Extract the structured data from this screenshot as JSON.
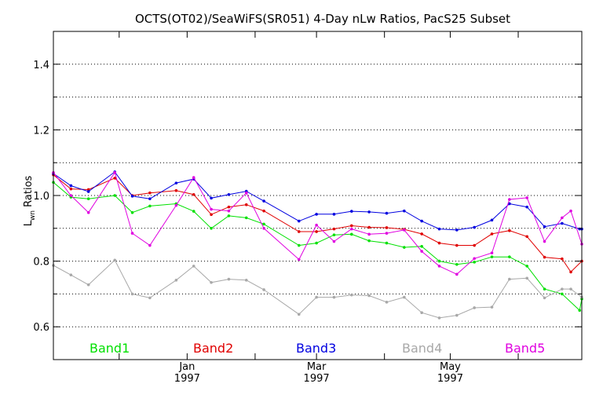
{
  "chart_data": {
    "type": "line",
    "title": "OCTS(OT02)/SeaWiFS(SR051) 4-Day nLw Ratios, PacS25 Subset",
    "ylabel": {
      "main": "L",
      "sub": "wn",
      "rest": " Ratios"
    },
    "ylim": [
      0.5,
      1.5
    ],
    "yticks": [
      0.6,
      0.8,
      1.0,
      1.2,
      1.4
    ],
    "ytick_labels": [
      "0.6",
      "0.8",
      "1.0",
      "1.2",
      "1.4"
    ],
    "yminor": [
      0.7,
      0.9,
      1.1,
      1.3
    ],
    "xlim": [
      "1996-11-01",
      "1997-06-30"
    ],
    "xticks": [
      {
        "date": "1996-12-01",
        "label": "",
        "year": ""
      },
      {
        "date": "1997-01-01",
        "label": "Jan",
        "year": "1997"
      },
      {
        "date": "1997-02-01",
        "label": "",
        "year": ""
      },
      {
        "date": "1997-03-01",
        "label": "Mar",
        "year": "1997"
      },
      {
        "date": "1997-04-01",
        "label": "",
        "year": ""
      },
      {
        "date": "1997-05-01",
        "label": "May",
        "year": "1997"
      },
      {
        "date": "1997-06-01",
        "label": "",
        "year": ""
      }
    ],
    "grid": "horizontal dotted",
    "legend_position": "bottom",
    "x": [
      "1996-11-01",
      "1996-11-05",
      "1996-11-09",
      "1996-11-13",
      "1996-11-17",
      "1996-11-21",
      "1996-11-29",
      "1996-12-03",
      "1996-12-07",
      "1996-12-11",
      "1996-12-15",
      "1996-12-19",
      "1996-12-23",
      "1996-12-27",
      "1997-01-04",
      "1997-01-08",
      "1997-01-12",
      "1997-01-16",
      "1997-01-20",
      "1997-01-24",
      "1997-01-28",
      "1997-02-05",
      "1997-02-13",
      "1997-02-17",
      "1997-02-21",
      "1997-02-25",
      "1997-03-01",
      "1997-03-05",
      "1997-03-09",
      "1997-03-13",
      "1997-03-17",
      "1997-03-21",
      "1997-03-25",
      "1997-03-29",
      "1997-04-02",
      "1997-04-06",
      "1997-04-10",
      "1997-04-14",
      "1997-04-18",
      "1997-04-22",
      "1997-04-26",
      "1997-04-30",
      "1997-05-04",
      "1997-05-08",
      "1997-05-12",
      "1997-05-16",
      "1997-05-20",
      "1997-05-24",
      "1997-05-28",
      "1997-06-01",
      "1997-06-05",
      "1997-06-09",
      "1997-06-13",
      "1997-06-17",
      "1997-06-21",
      "1997-06-25",
      "1997-06-29"
    ],
    "series": [
      {
        "name": "Band1",
        "color": "#00e000",
        "points": [
          [
            "1996-11-01",
            1.04
          ],
          [
            "1996-11-09",
            0.995
          ],
          [
            "1996-11-17",
            0.99
          ],
          [
            "1996-11-29",
            1.0
          ],
          [
            "1996-12-07",
            0.948
          ],
          [
            "1996-12-15",
            0.968
          ],
          [
            "1996-12-27",
            0.975
          ],
          [
            "1997-01-04",
            0.952
          ],
          [
            "1997-01-12",
            0.9
          ],
          [
            "1997-01-20",
            0.938
          ],
          [
            "1997-01-28",
            0.932
          ],
          [
            "1997-02-05",
            0.913
          ],
          [
            "1997-02-21",
            0.848
          ],
          [
            "1997-03-01",
            0.855
          ],
          [
            "1997-03-09",
            0.88
          ],
          [
            "1997-03-17",
            0.882
          ],
          [
            "1997-03-25",
            0.862
          ],
          [
            "1997-04-02",
            0.855
          ],
          [
            "1997-04-10",
            0.842
          ],
          [
            "1997-04-18",
            0.845
          ],
          [
            "1997-04-26",
            0.8
          ],
          [
            "1997-05-04",
            0.79
          ],
          [
            "1997-05-12",
            0.797
          ],
          [
            "1997-05-20",
            0.813
          ],
          [
            "1997-05-28",
            0.813
          ],
          [
            "1997-06-05",
            0.785
          ],
          [
            "1997-06-13",
            0.715
          ],
          [
            "1997-06-21",
            0.7
          ],
          [
            "1997-06-29",
            0.65
          ],
          [
            "1997-06-30",
            0.685
          ]
        ]
      },
      {
        "name": "Band2",
        "color": "#e00000",
        "points": [
          [
            "1996-11-01",
            1.063
          ],
          [
            "1996-11-09",
            1.02
          ],
          [
            "1996-11-17",
            1.018
          ],
          [
            "1996-11-29",
            1.053
          ],
          [
            "1996-12-07",
            1.0
          ],
          [
            "1996-12-15",
            1.008
          ],
          [
            "1996-12-27",
            1.015
          ],
          [
            "1997-01-04",
            1.003
          ],
          [
            "1997-01-12",
            0.942
          ],
          [
            "1997-01-20",
            0.965
          ],
          [
            "1997-01-28",
            0.972
          ],
          [
            "1997-02-05",
            0.953
          ],
          [
            "1997-02-21",
            0.89
          ],
          [
            "1997-03-01",
            0.89
          ],
          [
            "1997-03-09",
            0.898
          ],
          [
            "1997-03-17",
            0.908
          ],
          [
            "1997-03-25",
            0.903
          ],
          [
            "1997-04-02",
            0.902
          ],
          [
            "1997-04-10",
            0.897
          ],
          [
            "1997-04-18",
            0.883
          ],
          [
            "1997-04-26",
            0.855
          ],
          [
            "1997-05-04",
            0.848
          ],
          [
            "1997-05-12",
            0.848
          ],
          [
            "1997-05-20",
            0.883
          ],
          [
            "1997-05-28",
            0.893
          ],
          [
            "1997-06-05",
            0.875
          ],
          [
            "1997-06-13",
            0.812
          ],
          [
            "1997-06-21",
            0.807
          ],
          [
            "1997-06-25",
            0.767
          ],
          [
            "1997-06-30",
            0.8
          ]
        ]
      },
      {
        "name": "Band3",
        "color": "#0000e0",
        "points": [
          [
            "1996-11-01",
            1.067
          ],
          [
            "1996-11-09",
            1.03
          ],
          [
            "1996-11-17",
            1.012
          ],
          [
            "1996-11-29",
            1.072
          ],
          [
            "1996-12-07",
            0.998
          ],
          [
            "1996-12-15",
            0.99
          ],
          [
            "1996-12-27",
            1.038
          ],
          [
            "1997-01-04",
            1.05
          ],
          [
            "1997-01-12",
            0.992
          ],
          [
            "1997-01-20",
            1.003
          ],
          [
            "1997-01-28",
            1.013
          ],
          [
            "1997-02-05",
            0.983
          ],
          [
            "1997-02-21",
            0.922
          ],
          [
            "1997-03-01",
            0.943
          ],
          [
            "1997-03-09",
            0.943
          ],
          [
            "1997-03-17",
            0.952
          ],
          [
            "1997-03-25",
            0.95
          ],
          [
            "1997-04-02",
            0.946
          ],
          [
            "1997-04-10",
            0.953
          ],
          [
            "1997-04-18",
            0.922
          ],
          [
            "1997-04-26",
            0.898
          ],
          [
            "1997-05-04",
            0.895
          ],
          [
            "1997-05-12",
            0.903
          ],
          [
            "1997-05-20",
            0.925
          ],
          [
            "1997-05-28",
            0.975
          ],
          [
            "1997-06-05",
            0.965
          ],
          [
            "1997-06-13",
            0.905
          ],
          [
            "1997-06-21",
            0.915
          ],
          [
            "1997-06-29",
            0.898
          ],
          [
            "1997-06-30",
            0.898
          ]
        ]
      },
      {
        "name": "Band4",
        "color": "#a8a8a8",
        "points": [
          [
            "1996-11-01",
            0.787
          ],
          [
            "1996-11-09",
            0.758
          ],
          [
            "1996-11-17",
            0.728
          ],
          [
            "1996-11-29",
            0.803
          ],
          [
            "1996-12-07",
            0.7
          ],
          [
            "1996-12-15",
            0.688
          ],
          [
            "1996-12-27",
            0.742
          ],
          [
            "1997-01-04",
            0.785
          ],
          [
            "1997-01-12",
            0.735
          ],
          [
            "1997-01-20",
            0.745
          ],
          [
            "1997-01-28",
            0.742
          ],
          [
            "1997-02-05",
            0.713
          ],
          [
            "1997-02-21",
            0.638
          ],
          [
            "1997-03-01",
            0.69
          ],
          [
            "1997-03-09",
            0.69
          ],
          [
            "1997-03-17",
            0.697
          ],
          [
            "1997-03-25",
            0.695
          ],
          [
            "1997-04-02",
            0.675
          ],
          [
            "1997-04-10",
            0.69
          ],
          [
            "1997-04-18",
            0.643
          ],
          [
            "1997-04-26",
            0.627
          ],
          [
            "1997-05-04",
            0.635
          ],
          [
            "1997-05-12",
            0.658
          ],
          [
            "1997-05-20",
            0.66
          ],
          [
            "1997-05-28",
            0.745
          ],
          [
            "1997-06-05",
            0.748
          ],
          [
            "1997-06-13",
            0.688
          ],
          [
            "1997-06-21",
            0.715
          ],
          [
            "1997-06-25",
            0.715
          ],
          [
            "1997-06-30",
            0.69
          ]
        ]
      },
      {
        "name": "Band5",
        "color": "#e000e0",
        "points": [
          [
            "1996-11-01",
            1.07
          ],
          [
            "1996-11-09",
            1.0
          ],
          [
            "1996-11-17",
            0.948
          ],
          [
            "1996-11-29",
            1.07
          ],
          [
            "1996-12-07",
            0.885
          ],
          [
            "1996-12-15",
            0.848
          ],
          [
            "1996-12-27",
            0.97
          ],
          [
            "1997-01-04",
            1.055
          ],
          [
            "1997-01-12",
            0.958
          ],
          [
            "1997-01-20",
            0.953
          ],
          [
            "1997-01-28",
            1.008
          ],
          [
            "1997-02-05",
            0.9
          ],
          [
            "1997-02-21",
            0.805
          ],
          [
            "1997-03-01",
            0.91
          ],
          [
            "1997-03-09",
            0.86
          ],
          [
            "1997-03-17",
            0.898
          ],
          [
            "1997-03-25",
            0.882
          ],
          [
            "1997-04-02",
            0.885
          ],
          [
            "1997-04-10",
            0.895
          ],
          [
            "1997-04-18",
            0.83
          ],
          [
            "1997-04-26",
            0.785
          ],
          [
            "1997-05-04",
            0.76
          ],
          [
            "1997-05-12",
            0.808
          ],
          [
            "1997-05-20",
            0.825
          ],
          [
            "1997-05-28",
            0.988
          ],
          [
            "1997-06-05",
            0.993
          ],
          [
            "1997-06-13",
            0.86
          ],
          [
            "1997-06-21",
            0.932
          ],
          [
            "1997-06-25",
            0.953
          ],
          [
            "1997-06-30",
            0.852
          ]
        ]
      }
    ],
    "legend": [
      {
        "label": "Band1",
        "color": "#00e000"
      },
      {
        "label": "Band2",
        "color": "#e00000"
      },
      {
        "label": "Band3",
        "color": "#0000e0"
      },
      {
        "label": "Band4",
        "color": "#a8a8a8"
      },
      {
        "label": "Band5",
        "color": "#e000e0"
      }
    ]
  }
}
